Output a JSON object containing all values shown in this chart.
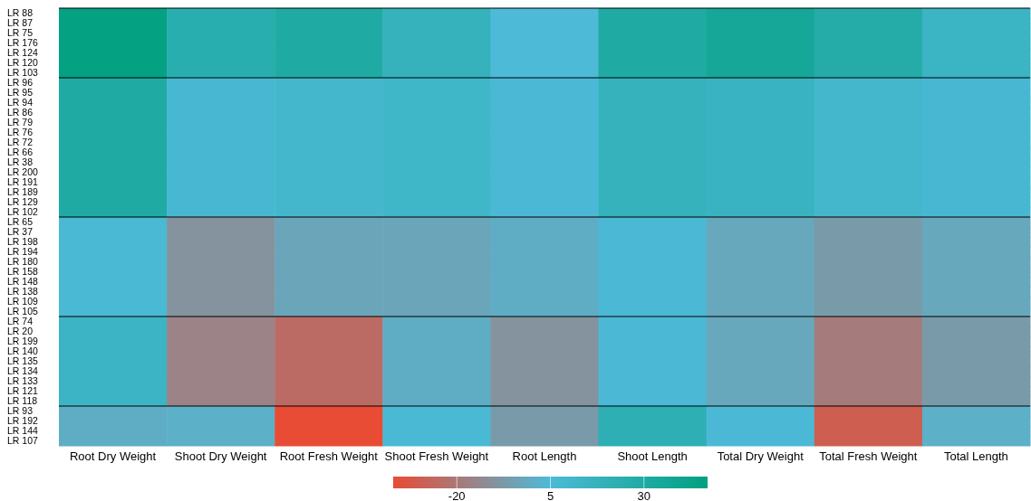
{
  "chart_data": {
    "type": "heatmap",
    "categories": [
      "Root Dry Weight",
      "Shoot Dry Weight",
      "Root Fresh Weight",
      "Shoot Fresh Weight",
      "Root Length",
      "Shoot Length",
      "Total Dry Weight",
      "Total Fresh Weight",
      "Total Length"
    ],
    "y_categories": [
      "LR 88",
      "LR 87",
      "LR 75",
      "LR 176",
      "LR 124",
      "LR 120",
      "LR 103",
      "LR 96",
      "LR 95",
      "LR 94",
      "LR 86",
      "LR 79",
      "LR 76",
      "LR 72",
      "LR 66",
      "LR 38",
      "LR 200",
      "LR 191",
      "LR 189",
      "LR 129",
      "LR 102",
      "LR 65",
      "LR 37",
      "LR 198",
      "LR 194",
      "LR 180",
      "LR 158",
      "LR 148",
      "LR 138",
      "LR 109",
      "LR 105",
      "LR 74",
      "LR 20",
      "LR 199",
      "LR 140",
      "LR 135",
      "LR 134",
      "LR 133",
      "LR 121",
      "LR 118",
      "LR 93",
      "LR 192",
      "LR 144",
      "LR 107"
    ],
    "cells": [
      [
        45,
        25,
        30,
        18,
        5,
        30,
        35,
        27,
        15
      ],
      [
        45,
        25,
        30,
        18,
        5,
        30,
        35,
        27,
        15
      ],
      [
        45,
        25,
        30,
        18,
        5,
        30,
        35,
        27,
        15
      ],
      [
        45,
        25,
        30,
        18,
        5,
        30,
        35,
        27,
        15
      ],
      [
        45,
        25,
        30,
        18,
        5,
        30,
        35,
        27,
        15
      ],
      [
        45,
        25,
        30,
        18,
        5,
        30,
        35,
        27,
        15
      ],
      [
        45,
        25,
        30,
        18,
        5,
        30,
        35,
        27,
        15
      ],
      [
        30,
        8,
        10,
        12,
        6,
        18,
        16,
        10,
        8
      ],
      [
        30,
        8,
        10,
        12,
        6,
        18,
        16,
        10,
        8
      ],
      [
        30,
        8,
        10,
        12,
        6,
        18,
        16,
        10,
        8
      ],
      [
        30,
        8,
        10,
        12,
        6,
        18,
        16,
        10,
        8
      ],
      [
        30,
        8,
        10,
        12,
        6,
        18,
        16,
        10,
        8
      ],
      [
        30,
        8,
        10,
        12,
        6,
        18,
        16,
        10,
        8
      ],
      [
        30,
        8,
        10,
        12,
        6,
        18,
        16,
        10,
        8
      ],
      [
        30,
        8,
        10,
        12,
        6,
        18,
        16,
        10,
        8
      ],
      [
        30,
        8,
        10,
        12,
        6,
        18,
        16,
        10,
        8
      ],
      [
        30,
        8,
        10,
        12,
        6,
        18,
        16,
        10,
        8
      ],
      [
        30,
        8,
        10,
        12,
        6,
        18,
        16,
        10,
        8
      ],
      [
        30,
        8,
        10,
        12,
        6,
        18,
        16,
        10,
        8
      ],
      [
        30,
        8,
        10,
        12,
        6,
        18,
        16,
        10,
        8
      ],
      [
        30,
        8,
        10,
        12,
        6,
        18,
        16,
        10,
        8
      ],
      [
        7,
        -10,
        -3,
        -3,
        0,
        6,
        -2,
        -7,
        -2
      ],
      [
        7,
        -10,
        -3,
        -3,
        0,
        6,
        -2,
        -7,
        -2
      ],
      [
        7,
        -10,
        -3,
        -3,
        0,
        6,
        -2,
        -7,
        -2
      ],
      [
        7,
        -10,
        -3,
        -3,
        0,
        6,
        -2,
        -7,
        -2
      ],
      [
        7,
        -10,
        -3,
        -3,
        0,
        6,
        -2,
        -7,
        -2
      ],
      [
        7,
        -10,
        -3,
        -3,
        0,
        6,
        -2,
        -7,
        -2
      ],
      [
        7,
        -10,
        -3,
        -3,
        0,
        6,
        -2,
        -7,
        -2
      ],
      [
        7,
        -10,
        -3,
        -3,
        0,
        6,
        -2,
        -7,
        -2
      ],
      [
        7,
        -10,
        -3,
        -3,
        0,
        6,
        -2,
        -7,
        -2
      ],
      [
        7,
        -10,
        -3,
        -3,
        0,
        6,
        -2,
        -7,
        -2
      ],
      [
        14,
        -16,
        -25,
        0,
        -10,
        6,
        -2,
        -19,
        -7
      ],
      [
        14,
        -16,
        -25,
        0,
        -10,
        6,
        -2,
        -19,
        -7
      ],
      [
        14,
        -16,
        -25,
        0,
        -10,
        6,
        -2,
        -19,
        -7
      ],
      [
        14,
        -16,
        -25,
        0,
        -10,
        6,
        -2,
        -19,
        -7
      ],
      [
        14,
        -16,
        -25,
        0,
        -10,
        6,
        -2,
        -19,
        -7
      ],
      [
        14,
        -16,
        -25,
        0,
        -10,
        6,
        -2,
        -19,
        -7
      ],
      [
        14,
        -16,
        -25,
        0,
        -10,
        6,
        -2,
        -19,
        -7
      ],
      [
        14,
        -16,
        -25,
        0,
        -10,
        6,
        -2,
        -19,
        -7
      ],
      [
        14,
        -16,
        -25,
        0,
        -10,
        6,
        -2,
        -19,
        -7
      ],
      [
        0,
        1,
        -37,
        7,
        -7,
        22,
        6,
        -30,
        1
      ],
      [
        0,
        1,
        -37,
        7,
        -7,
        22,
        6,
        -30,
        1
      ],
      [
        0,
        1,
        -37,
        7,
        -7,
        22,
        6,
        -30,
        1
      ],
      [
        0,
        1,
        -37,
        7,
        -7,
        22,
        6,
        -30,
        1
      ]
    ],
    "clim": [
      -37,
      47
    ],
    "cticks": [
      -20,
      5,
      30
    ]
  }
}
